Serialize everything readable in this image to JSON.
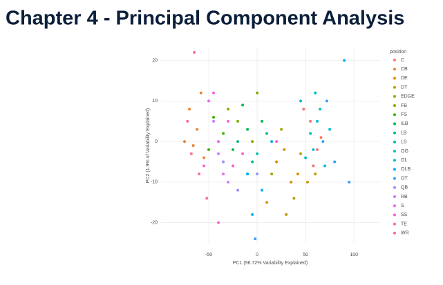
{
  "header": {
    "title": "Chapter 4 - Principal Component Analysis"
  },
  "chart_data": {
    "type": "scatter",
    "xlabel": "PC1 (96.72% Variability Explained)",
    "ylabel": "PC2 (1.9% of Variability Explained)",
    "legend_title": "position",
    "legend": "right",
    "grid": true,
    "xlim": [
      -100,
      127
    ],
    "ylim": [
      -25,
      23
    ],
    "xticks": [
      -50,
      0,
      50,
      100
    ],
    "yticks": [
      -20,
      -10,
      0,
      10,
      20
    ],
    "series": [
      {
        "name": "C",
        "color": "#F8766D",
        "x": [
          55,
          62,
          48,
          66,
          58
        ],
        "values": [
          5,
          -2,
          8,
          1,
          -6
        ]
      },
      {
        "name": "CB",
        "color": "#EA8331",
        "x": [
          -62,
          -70,
          -55,
          -66,
          -58,
          -75
        ],
        "values": [
          3,
          8,
          -4,
          -1,
          12,
          0
        ]
      },
      {
        "name": "DE",
        "color": "#D89000",
        "x": [
          20,
          35,
          10,
          28,
          42
        ],
        "values": [
          -5,
          -10,
          -15,
          -2,
          -8
        ]
      },
      {
        "name": "DT",
        "color": "#C09B00",
        "x": [
          45,
          52,
          38,
          60,
          30
        ],
        "values": [
          -3,
          -10,
          -14,
          -8,
          -18
        ]
      },
      {
        "name": "EDGE",
        "color": "#A3A500",
        "x": [
          15,
          25
        ],
        "values": [
          -8,
          3
        ]
      },
      {
        "name": "FB",
        "color": "#7CAE00",
        "x": [
          -20,
          -5,
          -30,
          0
        ],
        "values": [
          5,
          0,
          8,
          12
        ]
      },
      {
        "name": "FS",
        "color": "#39B600",
        "x": [
          -45,
          -35,
          -50
        ],
        "values": [
          6,
          2,
          -2
        ]
      },
      {
        "name": "ILB",
        "color": "#00BB4E",
        "x": [
          -10,
          -25,
          5,
          -15
        ],
        "values": [
          3,
          -2,
          5,
          9
        ]
      },
      {
        "name": "LB",
        "color": "#00BF7D",
        "x": [
          -5,
          -20,
          10
        ],
        "values": [
          -5,
          0,
          2
        ]
      },
      {
        "name": "LS",
        "color": "#00C1A3",
        "x": [
          0,
          -10
        ],
        "values": [
          -3,
          -8
        ]
      },
      {
        "name": "OG",
        "color": "#00BFC4",
        "x": [
          55,
          65,
          50,
          70,
          60
        ],
        "values": [
          2,
          8,
          -4,
          -6,
          12
        ]
      },
      {
        "name": "OL",
        "color": "#00BAE0",
        "x": [
          62,
          58,
          75,
          45
        ],
        "values": [
          5,
          -2,
          3,
          10
        ]
      },
      {
        "name": "OLB",
        "color": "#00B0F6",
        "x": [
          -10,
          5,
          -5,
          15,
          90
        ],
        "values": [
          -8,
          -12,
          -18,
          0,
          20
        ]
      },
      {
        "name": "OT",
        "color": "#35A2FF",
        "x": [
          68,
          72,
          80,
          95,
          -2
        ],
        "values": [
          0,
          10,
          -5,
          -10,
          -24
        ]
      },
      {
        "name": "QB",
        "color": "#9590FF",
        "x": [
          -20,
          -35,
          0
        ],
        "values": [
          -12,
          -5,
          -8
        ]
      },
      {
        "name": "RB",
        "color": "#C77CFF",
        "x": [
          -40,
          -30,
          -45
        ],
        "values": [
          -3,
          -10,
          5
        ]
      },
      {
        "name": "S",
        "color": "#E76BF3",
        "x": [
          -50,
          -40,
          -35
        ],
        "values": [
          10,
          0,
          -8
        ]
      },
      {
        "name": "SS",
        "color": "#FA62DB",
        "x": [
          -45,
          -55,
          -30,
          -40
        ],
        "values": [
          12,
          -6,
          5,
          -20
        ]
      },
      {
        "name": "TE",
        "color": "#FF62BC",
        "x": [
          -15,
          -25,
          20
        ],
        "values": [
          -3,
          -6,
          0
        ]
      },
      {
        "name": "WR",
        "color": "#FF6C91",
        "x": [
          -60,
          -68,
          -52,
          -72,
          -65
        ],
        "values": [
          -8,
          -3,
          -14,
          5,
          22
        ]
      }
    ]
  }
}
